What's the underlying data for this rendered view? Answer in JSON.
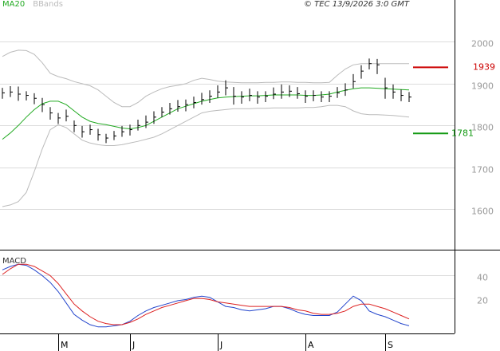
{
  "chart_data": [
    {
      "type": "ohlc",
      "source": "© TEC 13/9/2026 3:0 GMT",
      "categories": [
        null,
        null,
        null,
        null,
        null,
        null,
        null,
        "M",
        null,
        null,
        null,
        null,
        null,
        null,
        null,
        null,
        "J",
        null,
        null,
        null,
        null,
        null,
        null,
        null,
        null,
        null,
        null,
        "J",
        null,
        null,
        null,
        null,
        null,
        null,
        null,
        null,
        null,
        null,
        "A",
        null,
        null,
        null,
        null,
        null,
        null,
        null,
        null,
        null,
        "S",
        null,
        null,
        null
      ],
      "high": [
        1890,
        1894,
        1893,
        1882,
        1877,
        1866,
        1844,
        1830,
        1838,
        1812,
        1799,
        1802,
        1792,
        1780,
        1787,
        1799,
        1802,
        1814,
        1824,
        1834,
        1844,
        1854,
        1861,
        1862,
        1869,
        1878,
        1884,
        1896,
        1908,
        1892,
        1882,
        1888,
        1882,
        1882,
        1891,
        1898,
        1896,
        1892,
        1884,
        1884,
        1882,
        1882,
        1892,
        1901,
        1923,
        1944,
        1960,
        1959,
        1914,
        1898,
        1886,
        1880
      ],
      "low": [
        1864,
        1868,
        1859,
        1860,
        1851,
        1832,
        1814,
        1804,
        1810,
        1784,
        1771,
        1778,
        1764,
        1758,
        1765,
        1773,
        1776,
        1788,
        1794,
        1804,
        1820,
        1826,
        1833,
        1834,
        1841,
        1850,
        1854,
        1866,
        1872,
        1850,
        1852,
        1858,
        1852,
        1856,
        1863,
        1864,
        1868,
        1864,
        1854,
        1858,
        1856,
        1856,
        1866,
        1871,
        1889,
        1912,
        1934,
        1923,
        1864,
        1864,
        1858,
        1856
      ],
      "close": [
        1878,
        1880,
        1875,
        1872,
        1865,
        1850,
        1830,
        1818,
        1822,
        1800,
        1785,
        1790,
        1778,
        1770,
        1775,
        1785,
        1790,
        1800,
        1808,
        1820,
        1832,
        1840,
        1845,
        1850,
        1855,
        1862,
        1870,
        1880,
        1890,
        1870,
        1868,
        1872,
        1868,
        1870,
        1875,
        1880,
        1882,
        1876,
        1870,
        1872,
        1868,
        1870,
        1878,
        1885,
        1905,
        1930,
        1948,
        1945,
        1890,
        1880,
        1872,
        1868
      ],
      "series": [
        {
          "name": "MA20",
          "color": "#22aa22",
          "values": [
            1767,
            1782,
            1800,
            1820,
            1838,
            1852,
            1858,
            1858,
            1850,
            1835,
            1820,
            1810,
            1805,
            1802,
            1798,
            1794,
            1792,
            1795,
            1800,
            1810,
            1820,
            1830,
            1840,
            1846,
            1852,
            1858,
            1862,
            1866,
            1868,
            1869,
            1870,
            1871,
            1871,
            1872,
            1873,
            1873,
            1873,
            1873,
            1872,
            1872,
            1873,
            1875,
            1880,
            1884,
            1888,
            1890,
            1890,
            1889,
            1888,
            1887,
            1886,
            1885
          ]
        },
        {
          "name": "BBands",
          "color": "#bbbbbb",
          "upper": [
            1965,
            1975,
            1980,
            1979,
            1970,
            1950,
            1925,
            1917,
            1912,
            1905,
            1900,
            1895,
            1885,
            1870,
            1855,
            1845,
            1845,
            1855,
            1870,
            1880,
            1888,
            1893,
            1896,
            1900,
            1908,
            1913,
            1910,
            1906,
            1904,
            1903,
            1902,
            1902,
            1902,
            1903,
            1903,
            1904,
            1904,
            1903,
            1903,
            1902,
            1902,
            1903,
            1920,
            1935,
            1945,
            1948,
            1948,
            1948,
            1948,
            1948,
            1948,
            1948
          ],
          "lower": [
            1606,
            1610,
            1618,
            1640,
            1690,
            1744,
            1790,
            1802,
            1795,
            1780,
            1765,
            1758,
            1754,
            1752,
            1752,
            1754,
            1758,
            1762,
            1767,
            1772,
            1780,
            1790,
            1800,
            1810,
            1820,
            1830,
            1834,
            1836,
            1838,
            1840,
            1840,
            1840,
            1841,
            1841,
            1842,
            1842,
            1842,
            1842,
            1843,
            1843,
            1845,
            1848,
            1848,
            1845,
            1835,
            1828,
            1826,
            1826,
            1825,
            1824,
            1822,
            1820
          ]
        }
      ],
      "markers": [
        {
          "label": "1939",
          "value": 1939,
          "color": "#cc0000"
        },
        {
          "label": "1781",
          "value": 1781,
          "color": "#119911"
        }
      ],
      "ylim": [
        1505,
        2100
      ],
      "yticks": [
        1600,
        1700,
        1800,
        1900,
        2000
      ],
      "grid": true
    },
    {
      "type": "macd",
      "title": "MACD",
      "series": [
        {
          "color": "#2244cc",
          "values": [
            45,
            48,
            50,
            49,
            45,
            40,
            34,
            26,
            16,
            6,
            1,
            -3,
            -5,
            -5,
            -4,
            -3,
            0,
            5,
            9,
            12,
            14,
            16,
            18,
            19,
            21,
            22,
            21,
            17,
            13,
            12,
            10,
            9,
            10,
            11,
            13,
            13,
            11,
            8,
            6,
            5,
            5,
            5,
            8,
            15,
            22,
            18,
            9,
            6,
            4,
            1,
            -2,
            -4
          ]
        },
        {
          "color": "#dd2222",
          "values": [
            41,
            46,
            50,
            50,
            48,
            44,
            40,
            33,
            24,
            15,
            9,
            4,
            0,
            -2,
            -3,
            -3,
            -1,
            2,
            6,
            9,
            12,
            14,
            16,
            18,
            20,
            20,
            19,
            17,
            16,
            15,
            14,
            13,
            13,
            13,
            13,
            13,
            12,
            10,
            9,
            7,
            6,
            6,
            7,
            9,
            13,
            15,
            15,
            13,
            11,
            8,
            5,
            2
          ]
        }
      ],
      "ylim": [
        -10.7,
        62
      ],
      "yticks": [
        20,
        40
      ],
      "grid": true
    }
  ]
}
